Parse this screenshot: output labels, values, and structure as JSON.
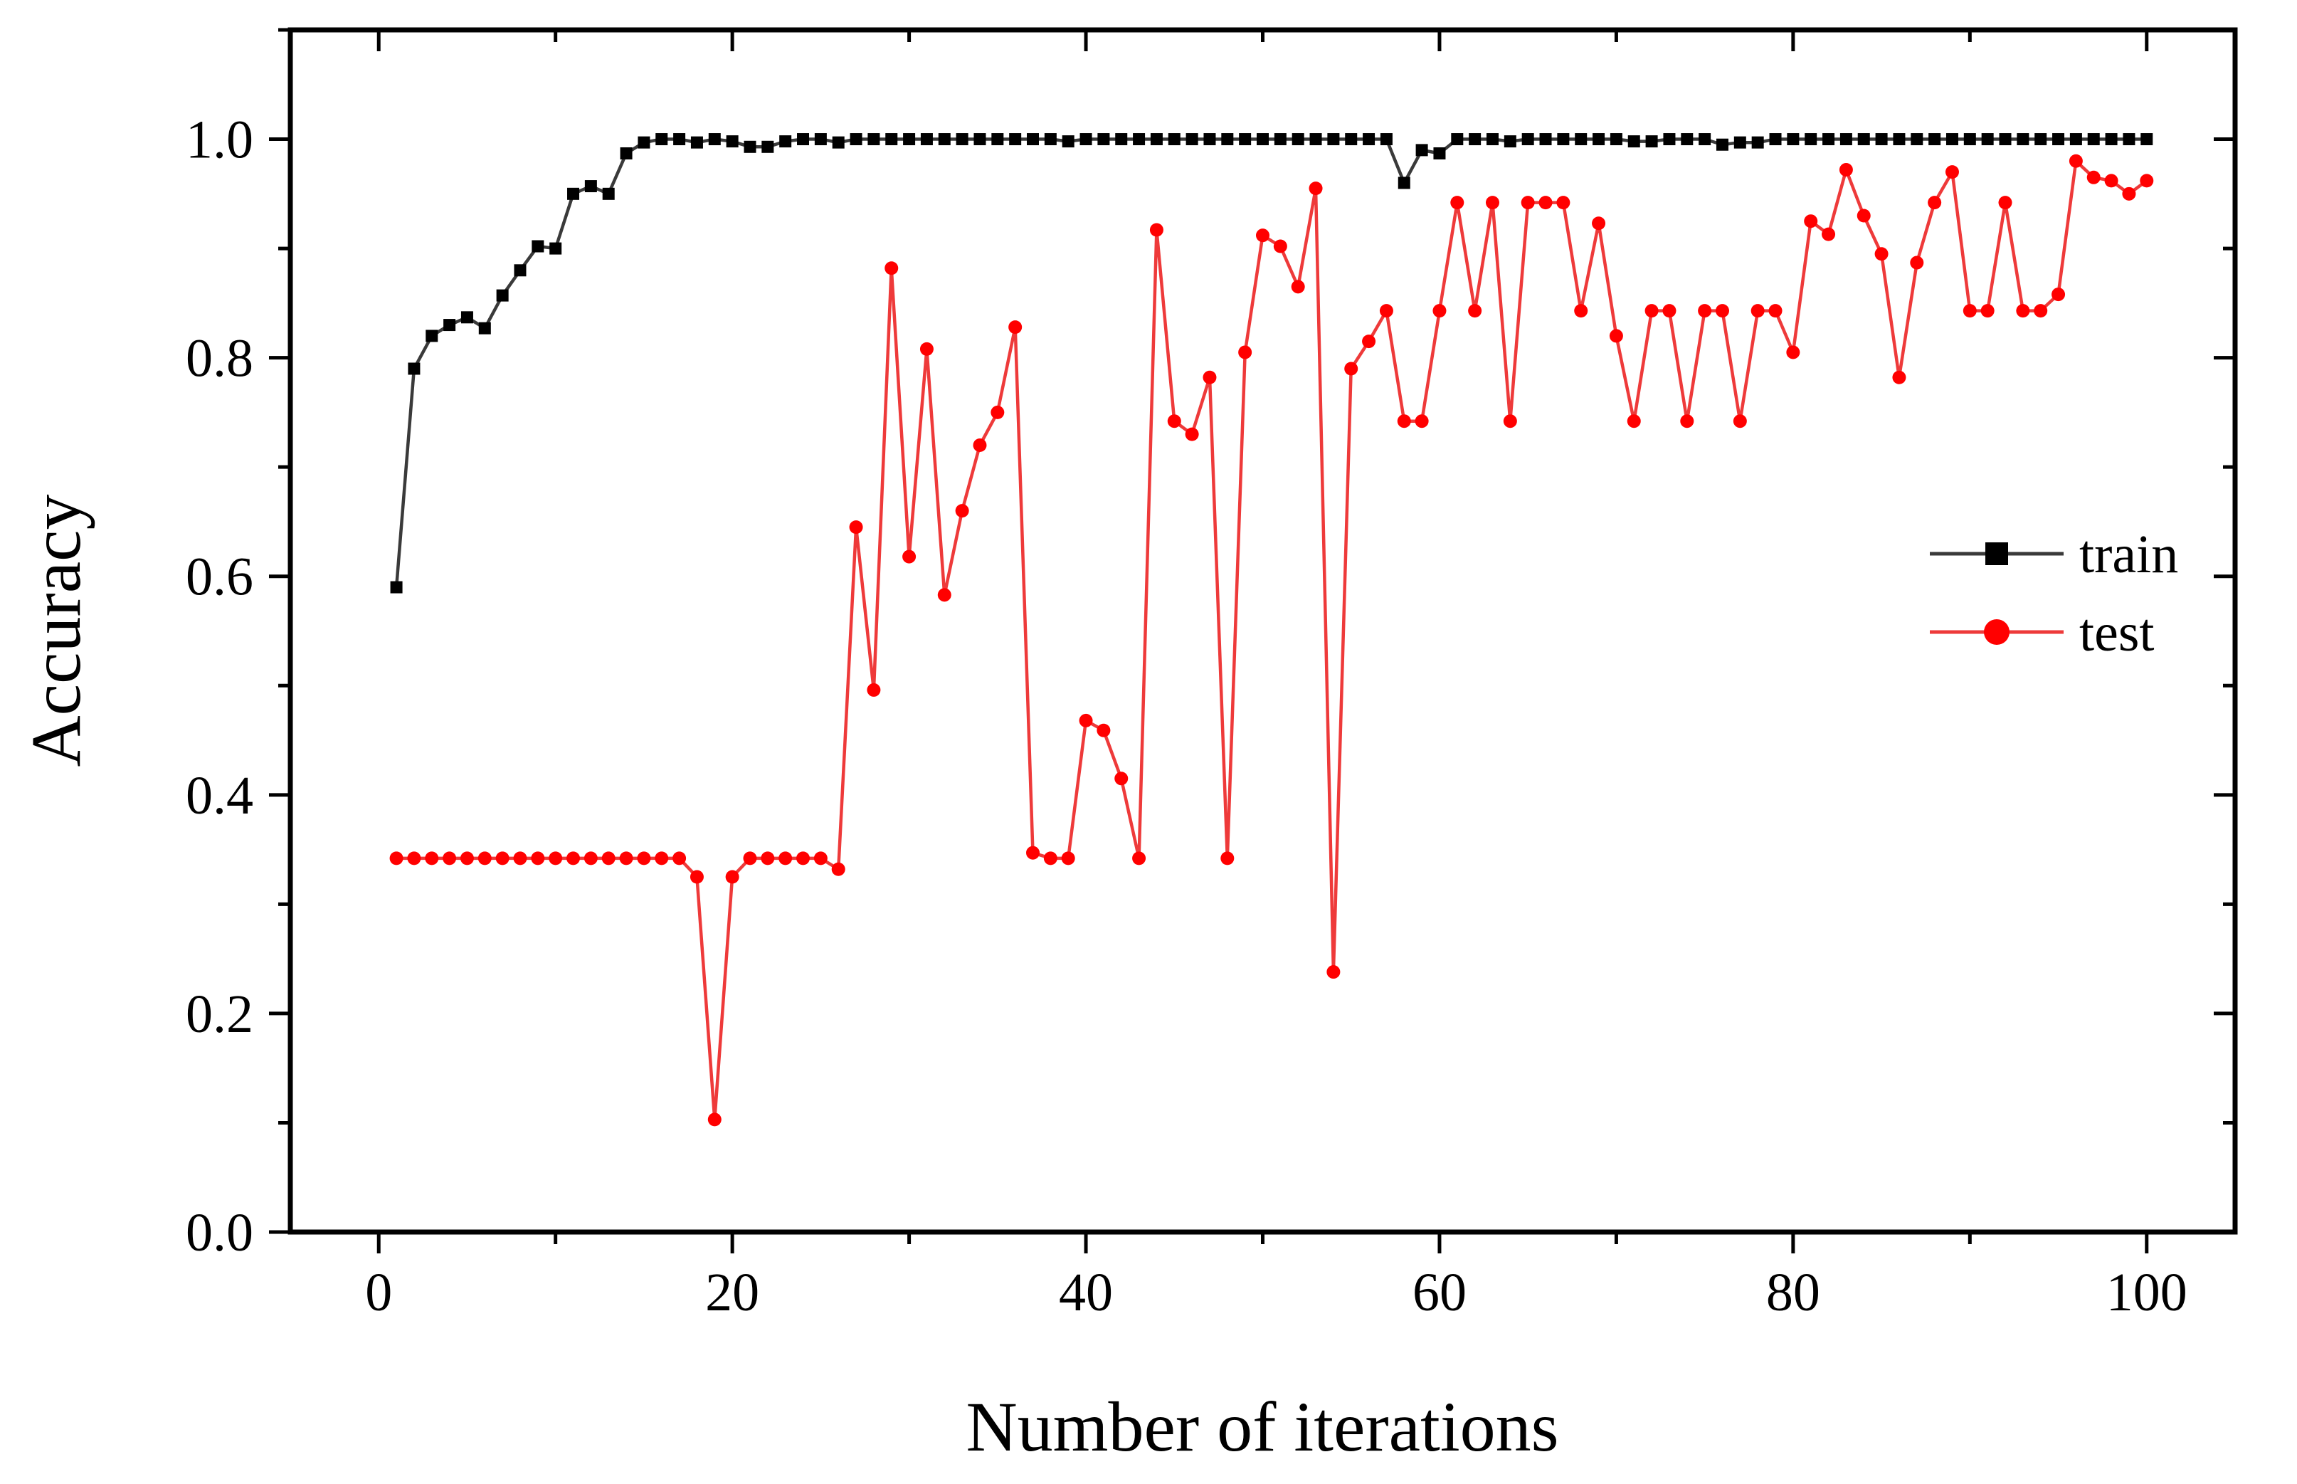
{
  "chart_data": {
    "type": "line",
    "title": "",
    "xlabel": "Number of iterations",
    "ylabel": "Accuracy",
    "xlim": [
      -5,
      105
    ],
    "ylim": [
      0.0,
      1.1
    ],
    "xticks": [
      0,
      20,
      40,
      60,
      80,
      100
    ],
    "xtick_labels": [
      "0",
      "20",
      "40",
      "60",
      "80",
      "100"
    ],
    "yticks": [
      0.0,
      0.2,
      0.4,
      0.6,
      0.8,
      1.0
    ],
    "ytick_labels": [
      "0.0",
      "0.2",
      "0.4",
      "0.6",
      "0.8",
      "1.0"
    ],
    "grid": false,
    "legend_position": "right",
    "x": [
      1,
      2,
      3,
      4,
      5,
      6,
      7,
      8,
      9,
      10,
      11,
      12,
      13,
      14,
      15,
      16,
      17,
      18,
      19,
      20,
      21,
      22,
      23,
      24,
      25,
      26,
      27,
      28,
      29,
      30,
      31,
      32,
      33,
      34,
      35,
      36,
      37,
      38,
      39,
      40,
      41,
      42,
      43,
      44,
      45,
      46,
      47,
      48,
      49,
      50,
      51,
      52,
      53,
      54,
      55,
      56,
      57,
      58,
      59,
      60,
      61,
      62,
      63,
      64,
      65,
      66,
      67,
      68,
      69,
      70,
      71,
      72,
      73,
      74,
      75,
      76,
      77,
      78,
      79,
      80,
      81,
      82,
      83,
      84,
      85,
      86,
      87,
      88,
      89,
      90,
      91,
      92,
      93,
      94,
      95,
      96,
      97,
      98,
      99,
      100
    ],
    "series": [
      {
        "name": "train",
        "color": "#000000",
        "line_color": "#3a3a3a",
        "marker": "square",
        "values": [
          0.59,
          0.79,
          0.82,
          0.83,
          0.837,
          0.827,
          0.857,
          0.88,
          0.902,
          0.9,
          0.95,
          0.957,
          0.95,
          0.987,
          0.997,
          1.0,
          1.0,
          0.997,
          1.0,
          0.998,
          0.993,
          0.993,
          0.998,
          1.0,
          1.0,
          0.997,
          1.0,
          1.0,
          1.0,
          1.0,
          1.0,
          1.0,
          1.0,
          1.0,
          1.0,
          1.0,
          1.0,
          1.0,
          0.998,
          1.0,
          1.0,
          1.0,
          1.0,
          1.0,
          1.0,
          1.0,
          1.0,
          1.0,
          1.0,
          1.0,
          1.0,
          1.0,
          1.0,
          1.0,
          1.0,
          1.0,
          1.0,
          0.96,
          0.99,
          0.987,
          1.0,
          1.0,
          1.0,
          0.998,
          1.0,
          1.0,
          1.0,
          1.0,
          1.0,
          1.0,
          0.998,
          0.998,
          1.0,
          1.0,
          1.0,
          0.995,
          0.997,
          0.997,
          1.0,
          1.0,
          1.0,
          1.0,
          1.0,
          1.0,
          1.0,
          1.0,
          1.0,
          1.0,
          1.0,
          1.0,
          1.0,
          1.0,
          1.0,
          1.0,
          1.0,
          1.0,
          1.0,
          1.0,
          1.0,
          1.0
        ]
      },
      {
        "name": "test",
        "color": "#ff0000",
        "line_color": "#ee3a3a",
        "marker": "circle",
        "values": [
          0.342,
          0.342,
          0.342,
          0.342,
          0.342,
          0.342,
          0.342,
          0.342,
          0.342,
          0.342,
          0.342,
          0.342,
          0.342,
          0.342,
          0.342,
          0.342,
          0.342,
          0.325,
          0.103,
          0.325,
          0.342,
          0.342,
          0.342,
          0.342,
          0.342,
          0.332,
          0.645,
          0.496,
          0.882,
          0.618,
          0.808,
          0.583,
          0.66,
          0.72,
          0.75,
          0.828,
          0.347,
          0.342,
          0.342,
          0.468,
          0.459,
          0.415,
          0.342,
          0.917,
          0.742,
          0.73,
          0.782,
          0.342,
          0.805,
          0.912,
          0.902,
          0.865,
          0.955,
          0.238,
          0.79,
          0.815,
          0.843,
          0.742,
          0.742,
          0.843,
          0.942,
          0.843,
          0.942,
          0.742,
          0.942,
          0.942,
          0.942,
          0.843,
          0.923,
          0.82,
          0.742,
          0.843,
          0.843,
          0.742,
          0.843,
          0.843,
          0.742,
          0.843,
          0.843,
          0.805,
          0.925,
          0.913,
          0.972,
          0.93,
          0.895,
          0.782,
          0.887,
          0.942,
          0.97,
          0.843,
          0.843,
          0.942,
          0.843,
          0.843,
          0.858,
          0.98,
          0.965,
          0.962,
          0.95,
          0.962
        ]
      }
    ]
  }
}
